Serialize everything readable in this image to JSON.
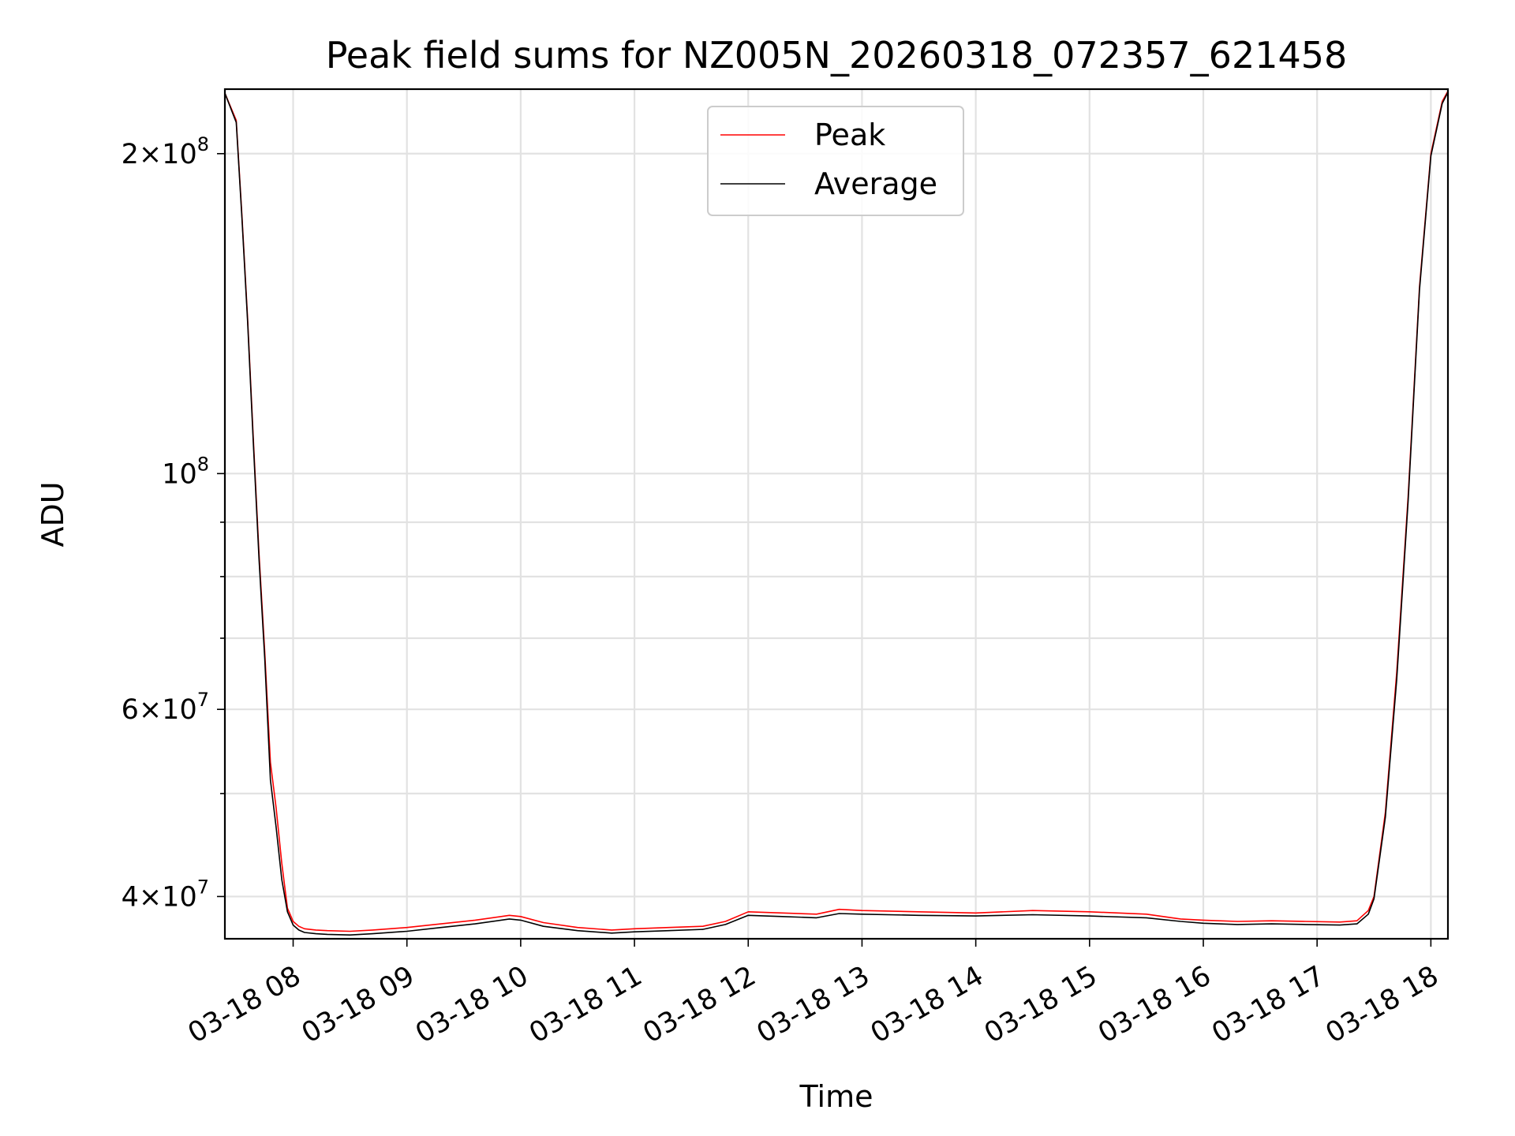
{
  "chart_data": {
    "type": "line",
    "title": "Peak field sums for NZ005N_20260318_072357_621458",
    "xlabel": "Time",
    "ylabel": "ADU",
    "x_unit": "hours (2026-03-18)",
    "xlim": [
      7.4,
      18.15
    ],
    "ylim": [
      36500000,
      230000000
    ],
    "y_scale": "log",
    "grid": true,
    "legend": {
      "position": "top-center",
      "entries": [
        "Peak",
        "Average"
      ]
    },
    "x_ticks": [
      {
        "value": 8,
        "label": "03-18 08"
      },
      {
        "value": 9,
        "label": "03-18 09"
      },
      {
        "value": 10,
        "label": "03-18 10"
      },
      {
        "value": 11,
        "label": "03-18 11"
      },
      {
        "value": 12,
        "label": "03-18 12"
      },
      {
        "value": 13,
        "label": "03-18 13"
      },
      {
        "value": 14,
        "label": "03-18 14"
      },
      {
        "value": 15,
        "label": "03-18 15"
      },
      {
        "value": 16,
        "label": "03-18 16"
      },
      {
        "value": 17,
        "label": "03-18 17"
      },
      {
        "value": 18,
        "label": "03-18 18"
      }
    ],
    "y_ticks": [
      {
        "value": 40000000,
        "mantissa": "4",
        "exponent": "7"
      },
      {
        "value": 60000000,
        "mantissa": "6",
        "exponent": "7"
      },
      {
        "value": 100000000,
        "mantissa": "",
        "exponent": "8"
      },
      {
        "value": 200000000,
        "mantissa": "2",
        "exponent": "8"
      }
    ],
    "y_minor_ticks": [
      50000000,
      70000000,
      80000000,
      90000000
    ],
    "series": [
      {
        "name": "Peak",
        "color": "#ff0000",
        "x": [
          7.4,
          7.5,
          7.55,
          7.6,
          7.65,
          7.7,
          7.75,
          7.8,
          7.85,
          7.9,
          7.95,
          8.0,
          8.05,
          8.1,
          8.2,
          8.3,
          8.5,
          8.7,
          9.0,
          9.3,
          9.6,
          9.9,
          10.0,
          10.2,
          10.5,
          10.8,
          11.0,
          11.3,
          11.6,
          11.8,
          12.0,
          12.3,
          12.6,
          12.8,
          13.0,
          13.5,
          14.0,
          14.5,
          15.0,
          15.5,
          15.8,
          16.0,
          16.3,
          16.6,
          16.9,
          17.2,
          17.35,
          17.45,
          17.5,
          17.6,
          17.7,
          17.8,
          17.9,
          18.0,
          18.1,
          18.15
        ],
        "y": [
          228000000,
          215000000,
          175000000,
          140000000,
          108000000,
          84000000,
          68000000,
          53500000,
          48500000,
          43000000,
          39000000,
          37900000,
          37500000,
          37300000,
          37200000,
          37150000,
          37100000,
          37200000,
          37400000,
          37700000,
          38000000,
          38400000,
          38300000,
          37800000,
          37400000,
          37200000,
          37300000,
          37400000,
          37500000,
          37900000,
          38700000,
          38600000,
          38500000,
          38900000,
          38800000,
          38700000,
          38600000,
          38800000,
          38700000,
          38500000,
          38100000,
          38000000,
          37900000,
          37950000,
          37900000,
          37850000,
          37950000,
          38800000,
          40000000,
          48000000,
          65000000,
          95000000,
          150000000,
          200000000,
          224000000,
          229000000
        ]
      },
      {
        "name": "Average",
        "color": "#000000",
        "x": [
          7.4,
          7.5,
          7.55,
          7.6,
          7.65,
          7.7,
          7.75,
          7.8,
          7.85,
          7.9,
          7.95,
          8.0,
          8.05,
          8.1,
          8.2,
          8.3,
          8.5,
          8.7,
          9.0,
          9.3,
          9.6,
          9.9,
          10.0,
          10.2,
          10.5,
          10.8,
          11.0,
          11.3,
          11.6,
          11.8,
          12.0,
          12.3,
          12.6,
          12.8,
          13.0,
          13.5,
          14.0,
          14.5,
          15.0,
          15.5,
          15.8,
          16.0,
          16.3,
          16.6,
          16.9,
          17.2,
          17.35,
          17.45,
          17.5,
          17.6,
          17.7,
          17.8,
          17.9,
          18.0,
          18.1,
          18.15
        ],
        "y": [
          228000000,
          214000000,
          174000000,
          139000000,
          107000000,
          83000000,
          67000000,
          51500000,
          46500000,
          41500000,
          38700000,
          37600000,
          37200000,
          37000000,
          36900000,
          36850000,
          36800000,
          36900000,
          37100000,
          37400000,
          37700000,
          38100000,
          38000000,
          37500000,
          37150000,
          36950000,
          37050000,
          37150000,
          37250000,
          37650000,
          38400000,
          38300000,
          38200000,
          38550000,
          38500000,
          38400000,
          38350000,
          38450000,
          38350000,
          38200000,
          37900000,
          37750000,
          37650000,
          37700000,
          37650000,
          37600000,
          37700000,
          38500000,
          39800000,
          47500000,
          64000000,
          94000000,
          149000000,
          199000000,
          223000000,
          228500000
        ]
      }
    ]
  }
}
